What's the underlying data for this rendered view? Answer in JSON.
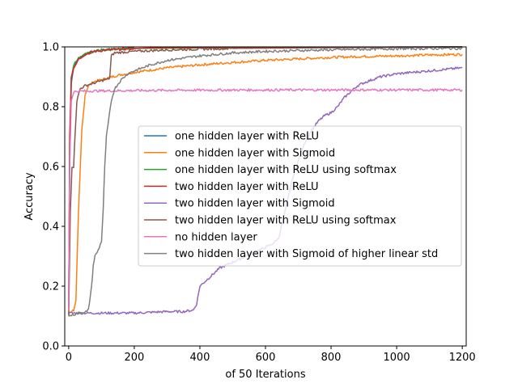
{
  "chart_data": {
    "type": "line",
    "title": "",
    "xlabel": "of 50 Iterations",
    "ylabel": "Accuracy",
    "xlim": [
      -12,
      1212
    ],
    "ylim": [
      0.0,
      1.0
    ],
    "xticks": [
      0,
      200,
      400,
      600,
      800,
      1000,
      1200
    ],
    "yticks": [
      0.0,
      0.2,
      0.4,
      0.6,
      0.8,
      1.0
    ],
    "xtick_labels": [
      "0",
      "200",
      "400",
      "600",
      "800",
      "1000",
      "1200"
    ],
    "ytick_labels": [
      "0.0",
      "0.2",
      "0.4",
      "0.6",
      "0.8",
      "1.0"
    ],
    "grid": false,
    "legend_position": "center-right",
    "series": [
      {
        "name": "one hidden layer with ReLU",
        "color": "#1f77b4",
        "points": [
          [
            0,
            0.14
          ],
          [
            3,
            0.6
          ],
          [
            8,
            0.88
          ],
          [
            15,
            0.93
          ],
          [
            30,
            0.96
          ],
          [
            60,
            0.98
          ],
          [
            100,
            0.99
          ],
          [
            200,
            0.995
          ],
          [
            400,
            0.998
          ],
          [
            1200,
            1.0
          ]
        ]
      },
      {
        "name": "one hidden layer with Sigmoid",
        "color": "#ff7f0e",
        "points": [
          [
            0,
            0.11
          ],
          [
            15,
            0.12
          ],
          [
            22,
            0.15
          ],
          [
            30,
            0.45
          ],
          [
            40,
            0.72
          ],
          [
            50,
            0.84
          ],
          [
            60,
            0.87
          ],
          [
            80,
            0.885
          ],
          [
            100,
            0.89
          ],
          [
            150,
            0.905
          ],
          [
            200,
            0.915
          ],
          [
            300,
            0.93
          ],
          [
            400,
            0.94
          ],
          [
            500,
            0.948
          ],
          [
            600,
            0.955
          ],
          [
            700,
            0.96
          ],
          [
            800,
            0.965
          ],
          [
            900,
            0.968
          ],
          [
            1000,
            0.97
          ],
          [
            1100,
            0.973
          ],
          [
            1200,
            0.975
          ]
        ]
      },
      {
        "name": "one hidden layer with ReLU using softmax",
        "color": "#2ca02c",
        "points": [
          [
            0,
            0.12
          ],
          [
            3,
            0.65
          ],
          [
            8,
            0.9
          ],
          [
            15,
            0.94
          ],
          [
            30,
            0.965
          ],
          [
            60,
            0.98
          ],
          [
            100,
            0.99
          ],
          [
            200,
            0.995
          ],
          [
            1200,
            1.0
          ]
        ]
      },
      {
        "name": "two hidden layer with ReLU",
        "color": "#d62728",
        "points": [
          [
            0,
            0.12
          ],
          [
            3,
            0.7
          ],
          [
            8,
            0.9
          ],
          [
            15,
            0.93
          ],
          [
            30,
            0.96
          ],
          [
            50,
            0.975
          ],
          [
            80,
            0.985
          ],
          [
            120,
            0.99
          ],
          [
            200,
            0.995
          ],
          [
            300,
            0.998
          ],
          [
            1200,
            1.0
          ]
        ]
      },
      {
        "name": "two hidden layer with Sigmoid",
        "color": "#9467bd",
        "points": [
          [
            0,
            0.11
          ],
          [
            100,
            0.11
          ],
          [
            200,
            0.11
          ],
          [
            300,
            0.115
          ],
          [
            350,
            0.115
          ],
          [
            380,
            0.12
          ],
          [
            390,
            0.14
          ],
          [
            400,
            0.2
          ],
          [
            420,
            0.22
          ],
          [
            440,
            0.24
          ],
          [
            460,
            0.26
          ],
          [
            480,
            0.27
          ],
          [
            500,
            0.28
          ],
          [
            520,
            0.29
          ],
          [
            540,
            0.3
          ],
          [
            560,
            0.31
          ],
          [
            580,
            0.32
          ],
          [
            600,
            0.33
          ],
          [
            620,
            0.34
          ],
          [
            640,
            0.36
          ],
          [
            660,
            0.45
          ],
          [
            680,
            0.55
          ],
          [
            700,
            0.62
          ],
          [
            720,
            0.68
          ],
          [
            740,
            0.72
          ],
          [
            760,
            0.75
          ],
          [
            780,
            0.77
          ],
          [
            800,
            0.78
          ],
          [
            820,
            0.8
          ],
          [
            840,
            0.83
          ],
          [
            860,
            0.85
          ],
          [
            880,
            0.87
          ],
          [
            900,
            0.88
          ],
          [
            950,
            0.9
          ],
          [
            1000,
            0.91
          ],
          [
            1050,
            0.915
          ],
          [
            1100,
            0.92
          ],
          [
            1150,
            0.925
          ],
          [
            1200,
            0.93
          ]
        ]
      },
      {
        "name": "two hidden layer with ReLU using softmax",
        "color": "#8c564b",
        "points": [
          [
            0,
            0.1
          ],
          [
            5,
            0.45
          ],
          [
            10,
            0.6
          ],
          [
            15,
            0.6
          ],
          [
            20,
            0.72
          ],
          [
            25,
            0.82
          ],
          [
            35,
            0.86
          ],
          [
            50,
            0.87
          ],
          [
            80,
            0.88
          ],
          [
            110,
            0.89
          ],
          [
            125,
            0.895
          ],
          [
            130,
            0.97
          ],
          [
            140,
            0.98
          ],
          [
            200,
            0.985
          ],
          [
            300,
            0.99
          ],
          [
            500,
            0.995
          ],
          [
            1200,
            1.0
          ]
        ]
      },
      {
        "name": "no hidden layer",
        "color": "#e377c2",
        "points": [
          [
            0,
            0.12
          ],
          [
            3,
            0.6
          ],
          [
            8,
            0.82
          ],
          [
            15,
            0.85
          ],
          [
            30,
            0.852
          ],
          [
            100,
            0.853
          ],
          [
            300,
            0.855
          ],
          [
            600,
            0.856
          ],
          [
            900,
            0.856
          ],
          [
            1200,
            0.856
          ]
        ]
      },
      {
        "name": "two hidden layer with Sigmoid of higher linear std",
        "color": "#7f7f7f",
        "points": [
          [
            0,
            0.1
          ],
          [
            30,
            0.11
          ],
          [
            55,
            0.115
          ],
          [
            60,
            0.12
          ],
          [
            70,
            0.2
          ],
          [
            75,
            0.27
          ],
          [
            80,
            0.3
          ],
          [
            90,
            0.32
          ],
          [
            100,
            0.35
          ],
          [
            105,
            0.45
          ],
          [
            110,
            0.6
          ],
          [
            115,
            0.7
          ],
          [
            120,
            0.74
          ],
          [
            125,
            0.78
          ],
          [
            130,
            0.82
          ],
          [
            140,
            0.86
          ],
          [
            160,
            0.89
          ],
          [
            180,
            0.91
          ],
          [
            200,
            0.92
          ],
          [
            250,
            0.94
          ],
          [
            300,
            0.955
          ],
          [
            400,
            0.97
          ],
          [
            500,
            0.98
          ],
          [
            600,
            0.985
          ],
          [
            700,
            0.988
          ],
          [
            800,
            0.99
          ],
          [
            1000,
            0.994
          ],
          [
            1200,
            0.995
          ]
        ]
      }
    ]
  }
}
